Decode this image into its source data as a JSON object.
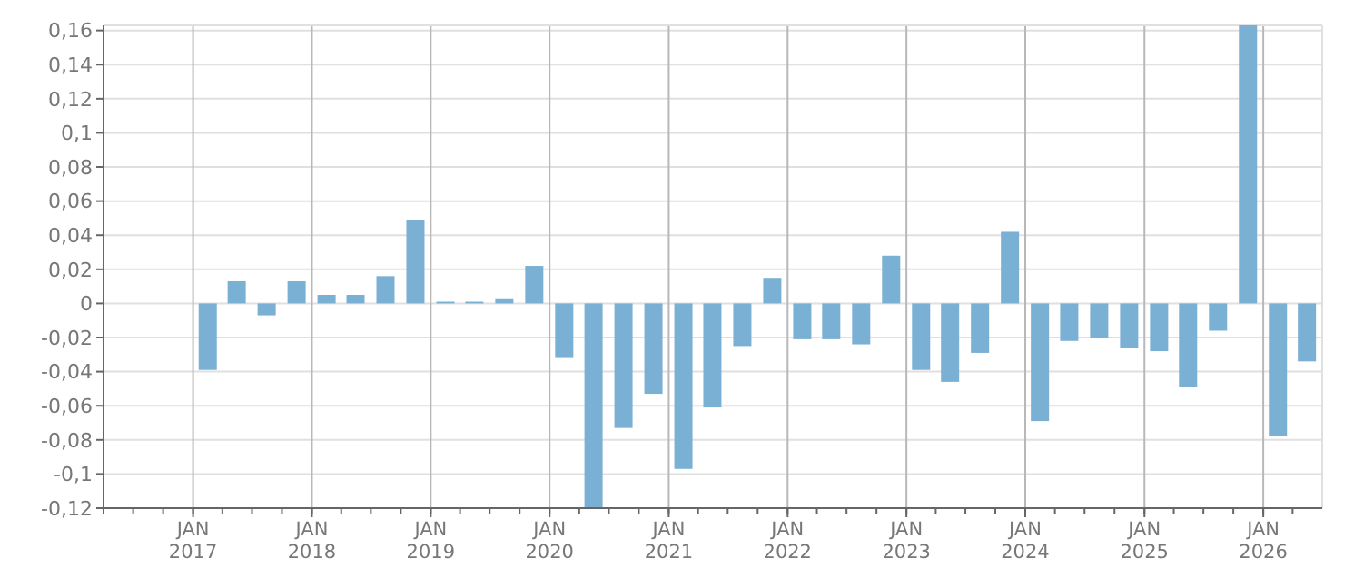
{
  "chart_data": {
    "type": "bar",
    "x": [
      "2017-02-15",
      "2017-05-15",
      "2017-08-15",
      "2017-11-15",
      "2018-02-15",
      "2018-05-15",
      "2018-08-15",
      "2018-11-15",
      "2019-02-15",
      "2019-05-15",
      "2019-08-15",
      "2019-11-15",
      "2020-02-15",
      "2020-05-15",
      "2020-08-15",
      "2020-11-15",
      "2021-02-15",
      "2021-05-15",
      "2021-08-15",
      "2021-11-15",
      "2022-02-15",
      "2022-05-15",
      "2022-08-15",
      "2022-11-15",
      "2023-02-15",
      "2023-05-15",
      "2023-08-15",
      "2023-11-15",
      "2024-02-15",
      "2024-05-15",
      "2024-08-15",
      "2024-11-15",
      "2025-02-15",
      "2025-05-15",
      "2025-08-15",
      "2025-11-15",
      "2026-02-15",
      "2026-05-15"
    ],
    "values": [
      -0.039,
      0.013,
      -0.007,
      0.013,
      0.005,
      0.005,
      0.016,
      0.049,
      0.001,
      0.001,
      0.003,
      0.022,
      -0.032,
      -0.12,
      -0.073,
      -0.053,
      -0.097,
      -0.061,
      -0.025,
      0.015,
      -0.021,
      -0.021,
      -0.024,
      0.028,
      -0.039,
      -0.046,
      -0.029,
      0.042,
      -0.069,
      -0.022,
      -0.02,
      -0.026,
      -0.028,
      -0.049,
      -0.016,
      0.163,
      -0.078,
      -0.034
    ],
    "color": "#7ab0d4",
    "xlim": [
      "2016-04-01",
      "2026-07-01"
    ],
    "xticks": [
      {
        "value": "2017-01-01",
        "label": "JAN 2017"
      },
      {
        "value": "2018-01-01",
        "label": "JAN 2018"
      },
      {
        "value": "2019-01-01",
        "label": "JAN 2019"
      },
      {
        "value": "2020-01-01",
        "label": "JAN 2020"
      },
      {
        "value": "2021-01-01",
        "label": "JAN 2021"
      },
      {
        "value": "2022-01-01",
        "label": "JAN 2022"
      },
      {
        "value": "2023-01-01",
        "label": "JAN 2023"
      },
      {
        "value": "2024-01-01",
        "label": "JAN 2024"
      },
      {
        "value": "2025-01-01",
        "label": "JAN 2025"
      },
      {
        "value": "2026-01-01",
        "label": "JAN 2026"
      }
    ],
    "ylim": [
      -0.12,
      0.163
    ],
    "yticks": [
      {
        "value": -0.12,
        "label": "-0,12"
      },
      {
        "value": -0.1,
        "label": "-0,1"
      },
      {
        "value": -0.08,
        "label": "-0,08"
      },
      {
        "value": -0.06,
        "label": "-0,06"
      },
      {
        "value": -0.04,
        "label": "-0,04"
      },
      {
        "value": -0.02,
        "label": "-0,02"
      },
      {
        "value": 0,
        "label": "0"
      },
      {
        "value": 0.02,
        "label": "0,02"
      },
      {
        "value": 0.04,
        "label": "0,04"
      },
      {
        "value": 0.06,
        "label": "0,06"
      },
      {
        "value": 0.08,
        "label": "0,08"
      },
      {
        "value": 0.1,
        "label": "0,1"
      },
      {
        "value": 0.12,
        "label": "0,12"
      },
      {
        "value": 0.14,
        "label": "0,14"
      },
      {
        "value": 0.16,
        "label": "0,16"
      }
    ],
    "grid": true
  }
}
